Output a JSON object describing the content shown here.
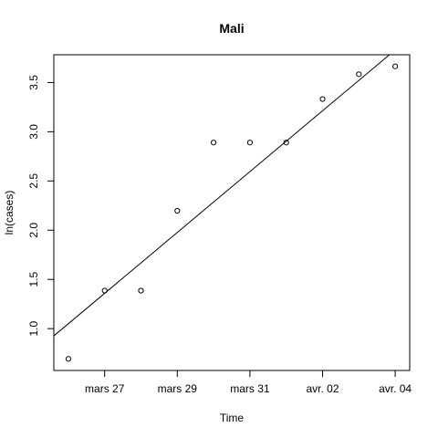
{
  "chart_data": {
    "type": "scatter",
    "title": "Mali",
    "xlabel": "Time",
    "ylabel": "ln(cases)",
    "x": [
      "2020-03-26",
      "2020-03-27",
      "2020-03-28",
      "2020-03-29",
      "2020-03-30",
      "2020-03-31",
      "2020-04-01",
      "2020-04-02",
      "2020-04-03",
      "2020-04-04"
    ],
    "y": [
      0.693,
      1.386,
      1.386,
      2.197,
      2.89,
      2.89,
      2.89,
      3.332,
      3.584,
      3.664
    ],
    "x_ticks": [
      "2020-03-27",
      "2020-03-29",
      "2020-03-31",
      "2020-04-02",
      "2020-04-04"
    ],
    "x_tick_labels": [
      "mars 27",
      "mars 29",
      "mars 31",
      "avr. 02",
      "avr. 04"
    ],
    "y_ticks": [
      1.0,
      1.5,
      2.0,
      2.5,
      3.0,
      3.5
    ],
    "y_tick_labels": [
      "1.0",
      "1.5",
      "2.0",
      "2.5",
      "3.0",
      "3.5"
    ],
    "xlim": [
      "2020-03-25 14:24",
      "2020-04-04 09:36"
    ],
    "ylim": [
      0.575,
      3.782
    ],
    "fit_line": {
      "intercept_at": "2020-03-26",
      "intercept": 1.05,
      "slope_per_day": 0.309
    },
    "grid": false,
    "legend": "none"
  }
}
